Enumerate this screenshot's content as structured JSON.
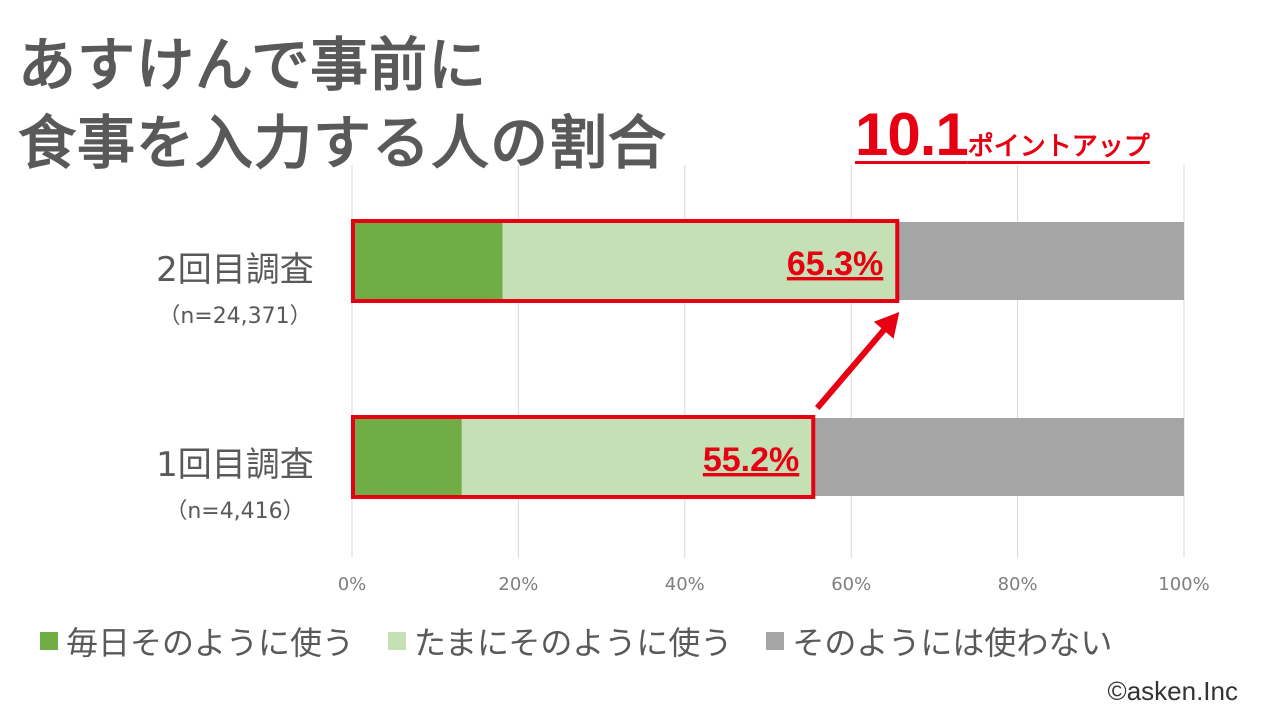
{
  "title": {
    "line1": "あすけんで事前に",
    "line2": "食事を入力する人の割合"
  },
  "callout": {
    "number": "10.1",
    "text": "ポイントアップ"
  },
  "colors": {
    "daily": "#70ad47",
    "sometimes": "#c5e0b4",
    "never": "#a5a5a5",
    "highlight": "#e60012",
    "text": "#595959"
  },
  "categories": [
    {
      "name": "2回目調査",
      "n": "（n=24,371）"
    },
    {
      "name": "1回目調査",
      "n": "（n=4,416）"
    }
  ],
  "legend": [
    "毎日そのように使う",
    "たまにそのように使う",
    "そのようには使わない"
  ],
  "copyright": "©asken.Inc",
  "chart_data": {
    "type": "bar",
    "orientation": "horizontal",
    "stacked": true,
    "categories": [
      "2回目調査",
      "1回目調査"
    ],
    "series": [
      {
        "name": "毎日そのように使う",
        "values": [
          18.1,
          13.2
        ]
      },
      {
        "name": "たまにそのように使う",
        "values": [
          47.2,
          42.0
        ]
      },
      {
        "name": "そのようには使わない",
        "values": [
          34.7,
          44.8
        ]
      }
    ],
    "highlight_labels": [
      "65.3%",
      "55.2%"
    ],
    "xticks": [
      "0%",
      "20%",
      "40%",
      "60%",
      "80%",
      "100%"
    ],
    "xlim": [
      0,
      100
    ],
    "grid": true,
    "legend_position": "bottom"
  }
}
